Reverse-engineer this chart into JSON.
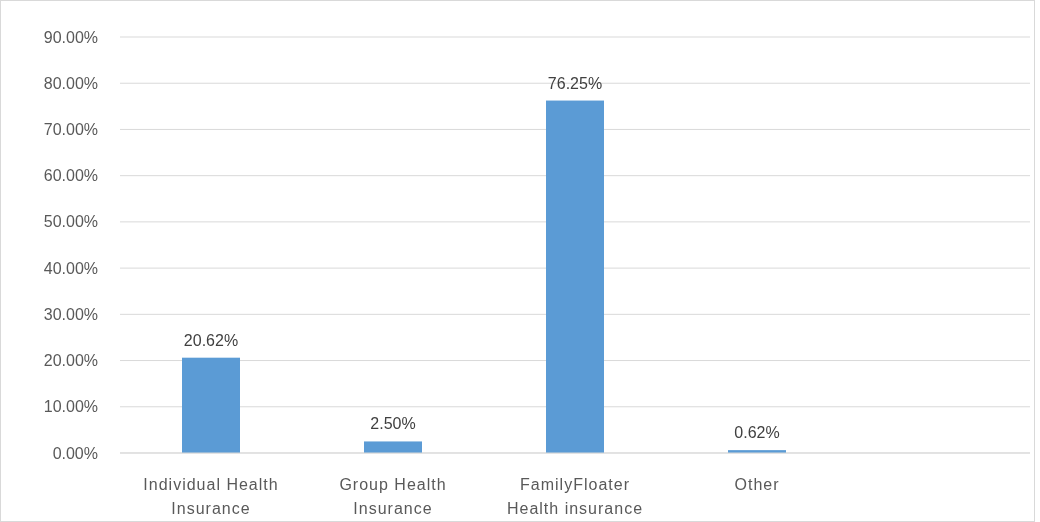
{
  "chart_data": {
    "type": "bar",
    "categories": [
      "Individual Health Insurance",
      "Group Health Insurance",
      "FamilyFloater Health insurance",
      "Other",
      null
    ],
    "values": [
      20.62,
      2.5,
      76.25,
      0.62,
      null
    ],
    "value_labels": [
      "20.62%",
      "2.50%",
      "76.25%",
      "0.62%",
      null
    ],
    "color": "#5b9bd5",
    "ylim": [
      0,
      90
    ],
    "yticks": [
      {
        "value": 0,
        "label": "0.00%"
      },
      {
        "value": 10,
        "label": "10.00%"
      },
      {
        "value": 20,
        "label": "20.00%"
      },
      {
        "value": 30,
        "label": "30.00%"
      },
      {
        "value": 40,
        "label": "40.00%"
      },
      {
        "value": 50,
        "label": "50.00%"
      },
      {
        "value": 60,
        "label": "60.00%"
      },
      {
        "value": 70,
        "label": "70.00%"
      },
      {
        "value": 80,
        "label": "80.00%"
      },
      {
        "value": 90,
        "label": "90.00%"
      }
    ],
    "grid": "y"
  }
}
